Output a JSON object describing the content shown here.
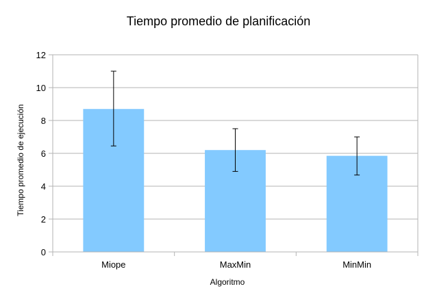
{
  "chart_data": {
    "type": "bar",
    "title": "Tiempo promedio de planificación",
    "xlabel": "Algoritmo",
    "ylabel": "Tiempo promedio de ejecución",
    "categories": [
      "Miope",
      "MaxMin",
      "MinMin"
    ],
    "values": [
      8.7,
      6.2,
      5.85
    ],
    "error_low": [
      6.45,
      4.9,
      4.68
    ],
    "error_high": [
      11.0,
      7.5,
      7.0
    ],
    "ylim": [
      0,
      12
    ],
    "yticks": [
      0,
      2,
      4,
      6,
      8,
      10,
      12
    ],
    "grid": true,
    "legend": false,
    "colors": {
      "bar": "#83caff",
      "grid": "#b3b3b3",
      "axis": "#b3b3b3",
      "error_bar": "#000000"
    }
  }
}
